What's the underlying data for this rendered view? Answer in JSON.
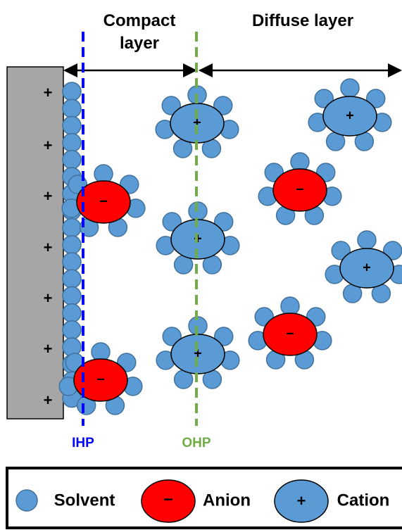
{
  "regions": {
    "compact": "Compact layer",
    "diffuse": "Diffuse layer"
  },
  "planes": {
    "ihp": "IHP",
    "ohp": "OHP"
  },
  "electrode_charge": "+",
  "anion_sign": "−",
  "cation_sign": "+",
  "legend": {
    "solvent": "Solvent",
    "anion": "Anion",
    "cation": "Cation"
  }
}
